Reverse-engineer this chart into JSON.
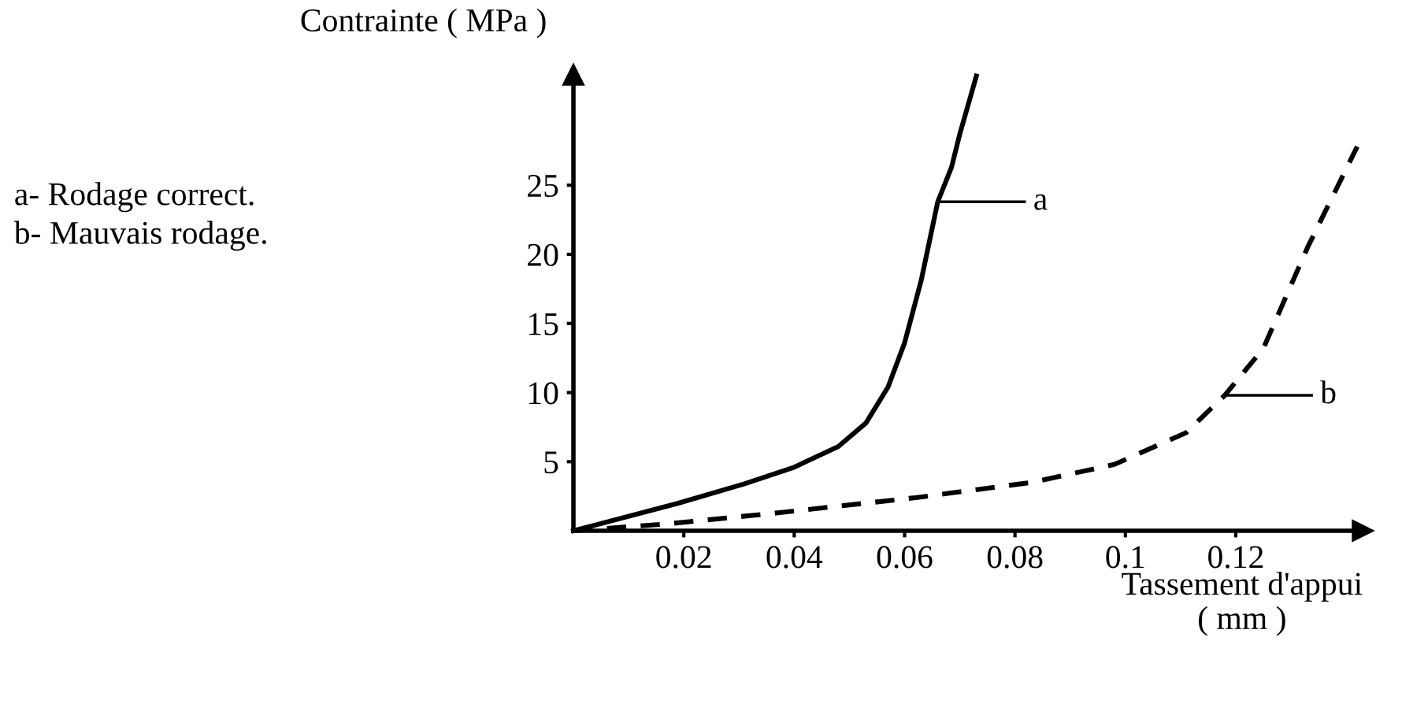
{
  "chart_data": {
    "type": "line",
    "ylabel": "Contrainte ( MPa )",
    "xlabel": "Tassement d'appui\n( mm )",
    "xlim": [
      0,
      0.143
    ],
    "ylim": [
      0,
      33
    ],
    "xticks": [
      0.02,
      0.04,
      0.06,
      0.08,
      0.1,
      0.12
    ],
    "yticks": [
      5,
      10,
      15,
      20,
      25
    ],
    "grid": false,
    "marker": "none",
    "series": [
      {
        "color": "#000000",
        "line_style": "solid",
        "x": [
          0,
          0.019,
          0.031,
          0.04,
          0.048,
          0.053,
          0.057,
          0.06,
          0.063,
          0.066,
          0.0685,
          0.07,
          0.073
        ],
        "values": [
          0,
          2.0,
          3.4,
          4.6,
          6.1,
          7.8,
          10.4,
          13.6,
          18.1,
          23.8,
          26.3,
          28.7,
          32.9
        ]
      },
      {
        "color": "#000000",
        "line_style": "dashed",
        "x": [
          0,
          0.017,
          0.037,
          0.062,
          0.083,
          0.098,
          0.111,
          0.118,
          0.125,
          0.133,
          0.142
        ],
        "values": [
          0,
          0.5,
          1.3,
          2.4,
          3.5,
          4.8,
          7.1,
          9.8,
          13.2,
          20.5,
          27.8
        ]
      }
    ],
    "annotations": [
      "a",
      "b",
      "a- Rodage correct.",
      "b- Mauvais rodage."
    ]
  }
}
